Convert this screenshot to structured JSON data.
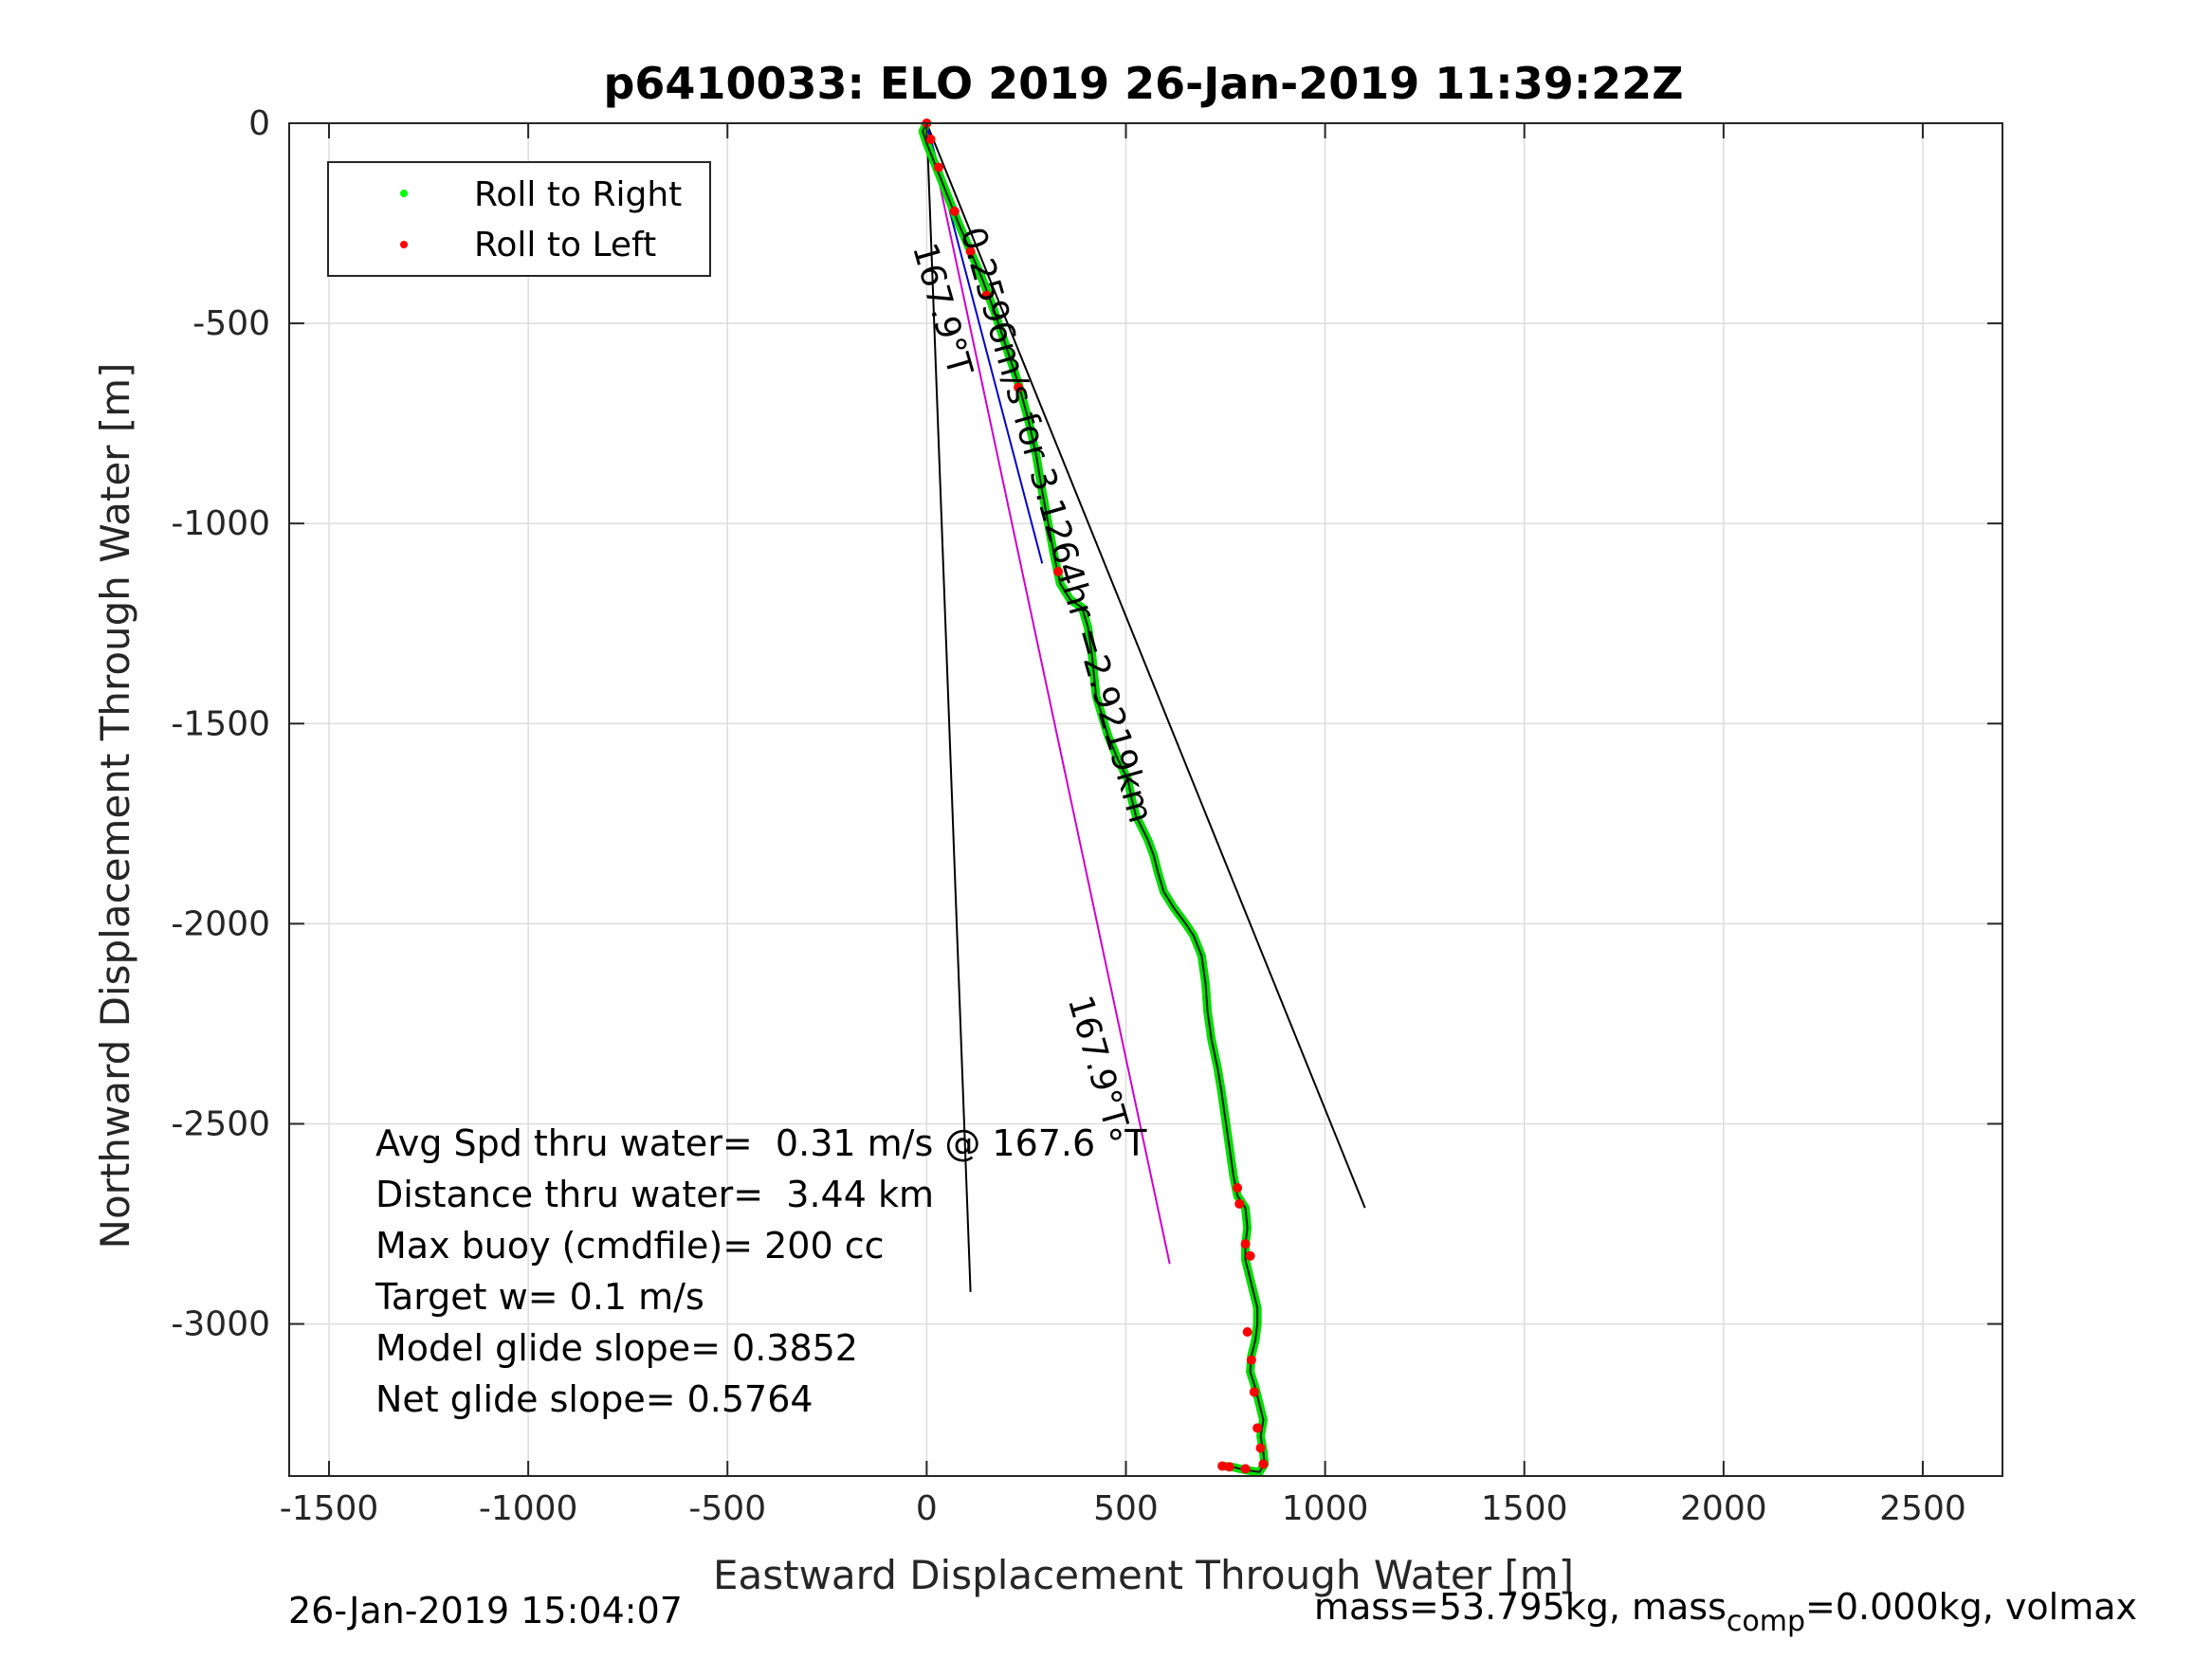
{
  "chart_data": {
    "type": "line",
    "title": "p6410033: ELO 2019 26-Jan-2019 11:39:22Z",
    "xlabel": "Eastward Displacement Through Water [m]",
    "ylabel": "Northward Displacement Through Water [m]",
    "xlim": [
      -1600,
      2700
    ],
    "ylim": [
      -3380,
      0
    ],
    "xticks": [
      -1500,
      -1000,
      -500,
      0,
      500,
      1000,
      1500,
      2000,
      2500
    ],
    "yticks": [
      0,
      -500,
      -1000,
      -1500,
      -2000,
      -2500,
      -3000
    ],
    "x_tick_labels": [
      "-1500",
      "-1000",
      "-500",
      "0",
      "500",
      "1000",
      "1500",
      "2000",
      "2500"
    ],
    "y_tick_labels": [
      "0",
      "-500",
      "-1000",
      "-1500",
      "-2000",
      "-2500",
      "-3000"
    ],
    "grid": true,
    "legend": {
      "placement": "top-left",
      "entries": [
        {
          "label": "Roll to Right",
          "color": "#00ff00"
        },
        {
          "label": "Roll to Left",
          "color": "#ff0000"
        }
      ]
    },
    "series": [
      {
        "name": "Roll to Right",
        "color": "#00dd00",
        "points": [
          [
            0,
            0
          ],
          [
            -10,
            -20
          ],
          [
            0,
            -50
          ],
          [
            20,
            -100
          ],
          [
            40,
            -150
          ],
          [
            60,
            -200
          ],
          [
            80,
            -250
          ],
          [
            110,
            -320
          ],
          [
            140,
            -390
          ],
          [
            170,
            -470
          ],
          [
            200,
            -560
          ],
          [
            230,
            -650
          ],
          [
            255,
            -740
          ],
          [
            275,
            -830
          ],
          [
            290,
            -920
          ],
          [
            305,
            -1000
          ],
          [
            320,
            -1080
          ],
          [
            335,
            -1150
          ],
          [
            360,
            -1190
          ],
          [
            390,
            -1210
          ],
          [
            405,
            -1260
          ],
          [
            415,
            -1330
          ],
          [
            420,
            -1380
          ],
          [
            425,
            -1430
          ],
          [
            440,
            -1480
          ],
          [
            455,
            -1530
          ],
          [
            480,
            -1590
          ],
          [
            505,
            -1640
          ],
          [
            515,
            -1690
          ],
          [
            525,
            -1730
          ],
          [
            540,
            -1760
          ],
          [
            555,
            -1790
          ],
          [
            570,
            -1830
          ],
          [
            580,
            -1870
          ],
          [
            595,
            -1920
          ],
          [
            620,
            -1960
          ],
          [
            650,
            -2000
          ],
          [
            670,
            -2030
          ],
          [
            690,
            -2080
          ],
          [
            700,
            -2150
          ],
          [
            705,
            -2220
          ],
          [
            715,
            -2290
          ],
          [
            730,
            -2360
          ],
          [
            740,
            -2420
          ],
          [
            750,
            -2490
          ],
          [
            760,
            -2560
          ],
          [
            770,
            -2630
          ],
          [
            780,
            -2680
          ],
          [
            800,
            -2710
          ],
          [
            805,
            -2760
          ],
          [
            800,
            -2800
          ],
          [
            800,
            -2840
          ],
          [
            810,
            -2880
          ],
          [
            820,
            -2920
          ],
          [
            830,
            -2960
          ],
          [
            830,
            -3000
          ],
          [
            825,
            -3040
          ],
          [
            815,
            -3080
          ],
          [
            812,
            -3120
          ],
          [
            825,
            -3160
          ],
          [
            835,
            -3200
          ],
          [
            845,
            -3240
          ],
          [
            838,
            -3280
          ],
          [
            845,
            -3320
          ],
          [
            848,
            -3350
          ],
          [
            835,
            -3370
          ],
          [
            800,
            -3365
          ],
          [
            770,
            -3358
          ],
          [
            745,
            -3355
          ]
        ]
      },
      {
        "name": "Roll to Left",
        "color": "#ff0000",
        "points": [
          [
            0,
            0
          ],
          [
            10,
            -40
          ],
          [
            30,
            -110
          ],
          [
            70,
            -220
          ],
          [
            110,
            -320
          ],
          [
            150,
            -430
          ],
          [
            230,
            -660
          ],
          [
            330,
            -1120
          ],
          [
            780,
            -2660
          ],
          [
            785,
            -2700
          ],
          [
            800,
            -2800
          ],
          [
            812,
            -2830
          ],
          [
            805,
            -3020
          ],
          [
            815,
            -3090
          ],
          [
            822,
            -3170
          ],
          [
            830,
            -3260
          ],
          [
            838,
            -3310
          ],
          [
            845,
            -3350
          ],
          [
            800,
            -3362
          ],
          [
            760,
            -3357
          ],
          [
            742,
            -3355
          ]
        ]
      }
    ],
    "reference_lines": [
      {
        "from": [
          0,
          0
        ],
        "to": [
          110,
          -2920
        ],
        "color": "#000000"
      },
      {
        "from": [
          0,
          0
        ],
        "to": [
          1100,
          -2710
        ],
        "color": "#000000"
      },
      {
        "from": [
          0,
          0
        ],
        "to": [
          610,
          -2850
        ],
        "color": "#cc00cc"
      },
      {
        "from": [
          0,
          0
        ],
        "to": [
          290,
          -1100
        ],
        "color": "#0000cc"
      }
    ],
    "annotations": [
      {
        "text": "167.9°T",
        "x": -35,
        "y": -310,
        "angle": 74
      },
      {
        "text": "0.2596m/s for 3.1264hr =2.9219km",
        "x": 85,
        "y": -270,
        "angle": 74
      },
      {
        "text": "167.9°T",
        "x": 355,
        "y": -2190,
        "angle": 74
      }
    ],
    "stats": [
      "Avg Spd thru water=  0.31 m/s @ 167.6 °T",
      "Distance thru water=  3.44 km",
      "Max buoy (cmdfile)= 200 cc",
      "Target w= 0.1 m/s",
      "Model glide slope= 0.3852",
      "Net glide slope= 0.5764"
    ],
    "footer_left": "26-Jan-2019 15:04:07",
    "footer_right_prefix": "mass=53.795kg, mass",
    "footer_right_subscript": "comp",
    "footer_right_suffix": "=0.000kg, volmax"
  }
}
